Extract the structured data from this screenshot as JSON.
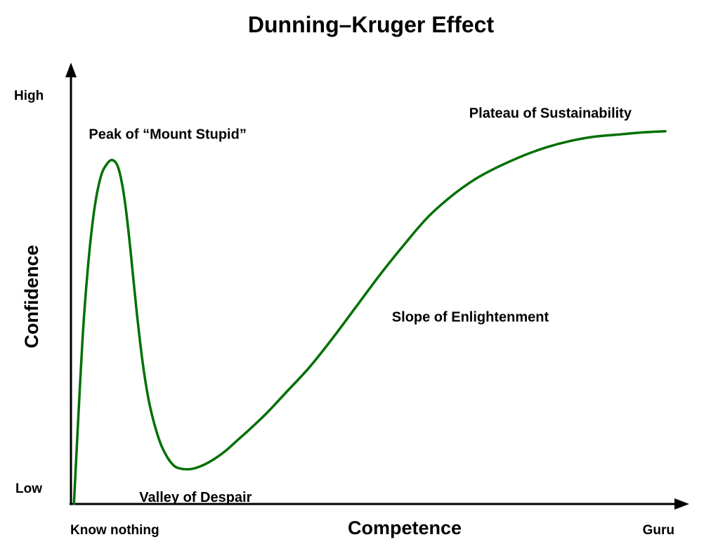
{
  "chart_data": {
    "type": "line",
    "title": "Dunning–Kruger Effect",
    "xlabel": "Competence",
    "ylabel": "Confidence",
    "x_tick_labels": {
      "start": "Know nothing",
      "end": "Guru"
    },
    "y_tick_labels": {
      "low": "Low",
      "high": "High"
    },
    "xlim": [
      0,
      100
    ],
    "ylim": [
      0,
      100
    ],
    "grid": false,
    "legend": "none",
    "series": [
      {
        "color": "#007000",
        "x": [
          0.5,
          1,
          2,
          3,
          4,
          5,
          6,
          7,
          8,
          9,
          10,
          11,
          12,
          13,
          14,
          15,
          16,
          17,
          18,
          20,
          22,
          24,
          26,
          28,
          30,
          33,
          36,
          40,
          44,
          48,
          52,
          56,
          60,
          64,
          68,
          72,
          76,
          80,
          84,
          88,
          92,
          96,
          100
        ],
        "y": [
          0,
          14,
          40,
          58,
          70,
          77,
          80,
          81,
          79,
          72,
          60,
          46,
          34,
          25,
          19,
          14.5,
          11.5,
          9.5,
          8.5,
          8.2,
          9,
          10.5,
          12.5,
          15,
          17.5,
          21.5,
          26,
          32,
          39,
          46.5,
          54,
          61,
          67.5,
          72.5,
          76.5,
          79.5,
          82,
          84,
          85.5,
          86.5,
          87,
          87.5,
          87.8
        ]
      }
    ],
    "annotations": [
      {
        "text": "Peak of “Mount Stupid”",
        "x": 3,
        "y": 86
      },
      {
        "text": "Valley of Despair",
        "x": 11.5,
        "y": 0.5
      },
      {
        "text": "Slope of Enlightenment",
        "x": 54,
        "y": 43
      },
      {
        "text": "Plateau of Sustainability",
        "x": 67,
        "y": 91
      }
    ]
  }
}
